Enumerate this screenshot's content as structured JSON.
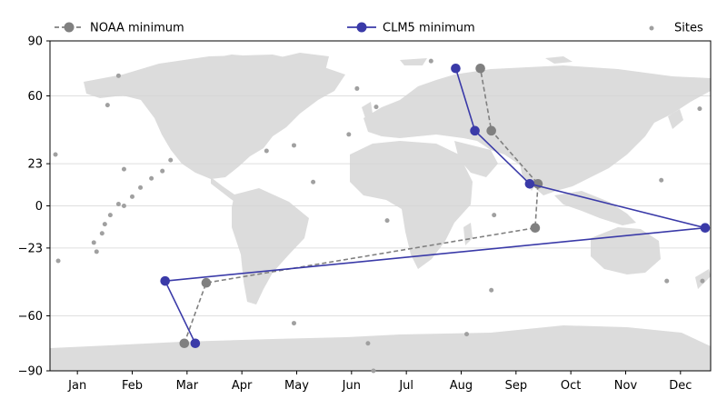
{
  "chart_data": {
    "type": "line",
    "title": "",
    "xlabel": "",
    "ylabel": "",
    "x_ticks": [
      "Jan",
      "Feb",
      "Mar",
      "Apr",
      "May",
      "Jun",
      "Jul",
      "Aug",
      "Sep",
      "Oct",
      "Nov",
      "Dec"
    ],
    "xlim": [
      0.5,
      12.55
    ],
    "ylim": [
      -90,
      90
    ],
    "y_ticks": [
      -90,
      -60,
      -23,
      0,
      23,
      60,
      90
    ],
    "grid": "horizontal at y ticks",
    "legend_placement": "top, above plot",
    "background": "world land map (light grey)",
    "series": [
      {
        "name": "NOAA minimum",
        "color": "#808080",
        "style": "dashed",
        "marker": "circle",
        "points": [
          [
            2.95,
            -75
          ],
          [
            3.35,
            -42
          ],
          [
            9.35,
            -12
          ],
          [
            9.4,
            12
          ],
          [
            8.55,
            41
          ],
          [
            8.35,
            75
          ]
        ]
      },
      {
        "name": "CLM5 minimum",
        "color": "#3a3aa8",
        "style": "solid",
        "marker": "circle",
        "points": [
          [
            3.15,
            -75
          ],
          [
            2.6,
            -41
          ],
          [
            12.45,
            -12
          ],
          [
            9.25,
            12
          ],
          [
            8.25,
            41
          ],
          [
            7.9,
            75
          ]
        ]
      },
      {
        "name": "Sites",
        "color": "#a0a0a0",
        "style": "none",
        "marker": "small-dot",
        "points": [
          [
            1.75,
            71
          ],
          [
            1.55,
            55
          ],
          [
            0.6,
            28
          ],
          [
            1.85,
            20
          ],
          [
            2.7,
            25
          ],
          [
            2.55,
            19
          ],
          [
            2.35,
            15
          ],
          [
            2.15,
            10
          ],
          [
            2.0,
            5
          ],
          [
            1.75,
            1
          ],
          [
            1.85,
            0
          ],
          [
            1.6,
            -5
          ],
          [
            1.5,
            -10
          ],
          [
            1.45,
            -15
          ],
          [
            1.3,
            -20
          ],
          [
            1.35,
            -25
          ],
          [
            0.65,
            -30
          ],
          [
            4.45,
            30
          ],
          [
            4.95,
            33
          ],
          [
            5.3,
            13
          ],
          [
            6.1,
            64
          ],
          [
            6.45,
            54
          ],
          [
            5.95,
            39
          ],
          [
            6.65,
            -8
          ],
          [
            4.95,
            -64
          ],
          [
            6.3,
            -75
          ],
          [
            6.4,
            -90
          ],
          [
            7.45,
            79
          ],
          [
            8.6,
            -5
          ],
          [
            8.1,
            -70
          ],
          [
            8.55,
            -46
          ],
          [
            11.65,
            14
          ],
          [
            11.75,
            -41
          ],
          [
            12.35,
            53
          ],
          [
            12.4,
            -41
          ]
        ]
      }
    ]
  }
}
